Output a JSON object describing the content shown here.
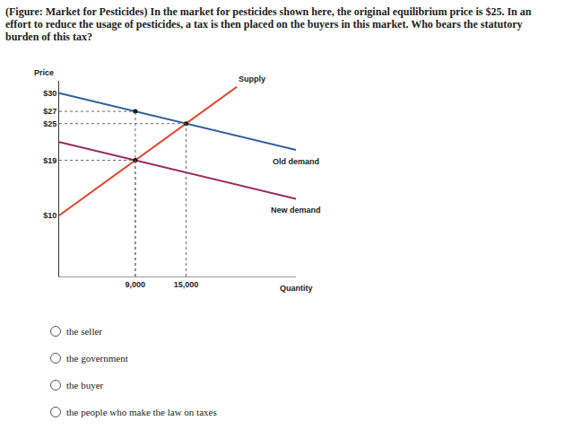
{
  "question": "(Figure: Market for Pesticides) In the market for pesticides shown here, the original equilibrium price is $25. In an effort to reduce the usage of pesticides, a tax is then placed on the buyers in this market. Who bears the statutory burden of this tax?",
  "chart_data": {
    "type": "line",
    "y_label": "Price",
    "x_label": "Quantity",
    "series": [
      {
        "name": "Supply",
        "color": "#e2462c",
        "x": [
          0,
          21000
        ],
        "values": [
          10,
          31
        ]
      },
      {
        "name": "Old demand",
        "color": "#2f5f9e",
        "x": [
          0,
          28000
        ],
        "values": [
          30,
          20.7
        ]
      },
      {
        "name": "New demand",
        "color": "#9a2a5a",
        "x": [
          0,
          28000
        ],
        "values": [
          22,
          12.7
        ]
      }
    ],
    "points": {
      "x": [
        9000,
        9000,
        15000
      ],
      "values": [
        19,
        27,
        25
      ]
    },
    "xlim": [
      0,
      28000
    ],
    "xticks": [
      {
        "value": 9000,
        "label": "9,000"
      },
      {
        "value": 15000,
        "label": "15,000"
      }
    ],
    "ylim": [
      0,
      32
    ],
    "yticks": [
      {
        "value": 10,
        "label": "$10"
      },
      {
        "value": 19,
        "label": "$19"
      },
      {
        "value": 25,
        "label": "$25"
      },
      {
        "value": 27,
        "label": "$27"
      },
      {
        "value": 30,
        "label": "$30"
      }
    ],
    "grid": false,
    "marker": "circle",
    "line_style": "dot"
  },
  "options": [
    "the seller",
    "the government",
    "the buyer",
    "the people who make the law on taxes"
  ]
}
